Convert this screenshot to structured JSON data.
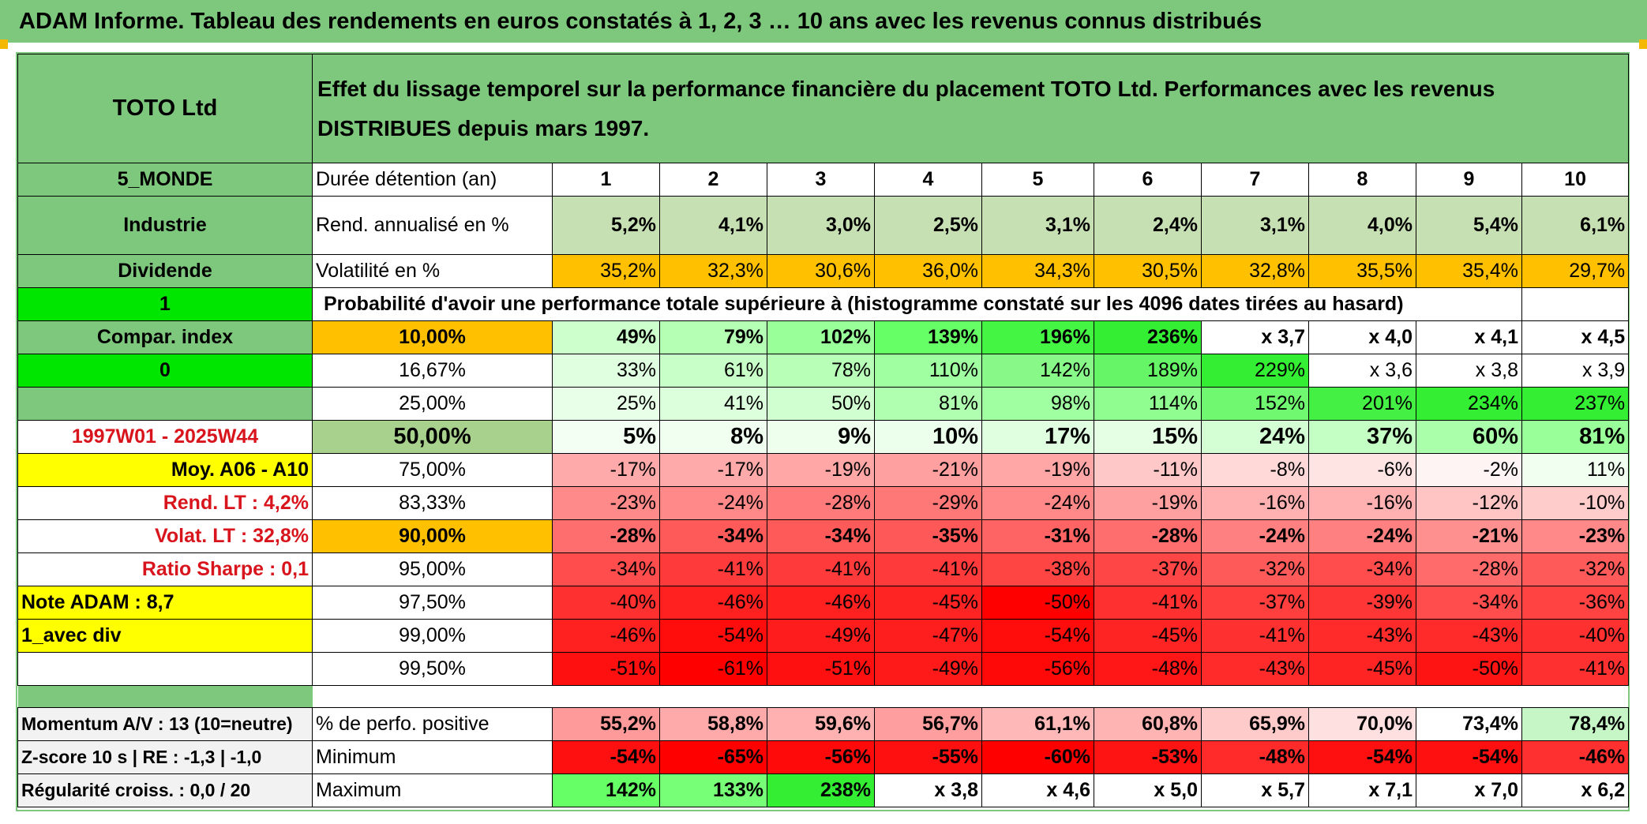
{
  "banner": {
    "title": "ADAM Informe. Tableau des rendements en euros constatés à 1, 2, 3 … 10 ans avec les revenus connus distribués"
  },
  "header": {
    "fund": "TOTO Ltd",
    "description": "Effet du lissage temporel sur la performance financière du placement TOTO Ltd. Performances avec les revenus DISTRIBUES depuis mars 1997."
  },
  "side": {
    "region": "5_MONDE",
    "sector": "Industrie",
    "income_type": "Dividende",
    "flag1": "1",
    "compar_label": "Compar. index",
    "flag0": "0",
    "period": "1997W01 - 2025W44",
    "moy": "Moy. A06 - A10",
    "rend_lt": "Rend. LT :    4,2%",
    "volat_lt": "Volat. LT :   32,8%",
    "sharpe": "Ratio Sharpe :    0,1",
    "note": "Note ADAM : 8,7",
    "variant": "1_avec div",
    "momentum": "Momentum A/V : 13 (10=neutre)",
    "zscore": "Z-score 10 s | RE : -1,3 | -1,0",
    "regularite": "Régularité croiss. : 0,0 / 20"
  },
  "labels": {
    "duree": "Durée détention (an)",
    "rend": "Rend. annualisé en %",
    "vol": "Volatilité en %",
    "proba": "Probabilité d'avoir une performance totale supérieure à (histogramme constaté sur les 4096 dates tirées au hasard)",
    "pos": "% de perfo. positive",
    "min": "Minimum",
    "max": "Maximum"
  },
  "years": [
    "1",
    "2",
    "3",
    "4",
    "5",
    "6",
    "7",
    "8",
    "9",
    "10"
  ],
  "rend": [
    "5,2%",
    "4,1%",
    "3,0%",
    "2,5%",
    "3,1%",
    "2,4%",
    "3,1%",
    "4,0%",
    "5,4%",
    "6,1%"
  ],
  "vol": [
    "35,2%",
    "32,3%",
    "30,6%",
    "36,0%",
    "34,3%",
    "30,5%",
    "32,8%",
    "35,5%",
    "35,4%",
    "29,7%"
  ],
  "dist": [
    {
      "p": "10,00%",
      "v": [
        "49%",
        "79%",
        "102%",
        "139%",
        "196%",
        "236%",
        "x 3,7",
        "x 4,0",
        "x 4,1",
        "x 4,5"
      ]
    },
    {
      "p": "16,67%",
      "v": [
        "33%",
        "61%",
        "78%",
        "110%",
        "142%",
        "189%",
        "229%",
        "x 3,6",
        "x 3,8",
        "x 3,9"
      ]
    },
    {
      "p": "25,00%",
      "v": [
        "25%",
        "41%",
        "50%",
        "81%",
        "98%",
        "114%",
        "152%",
        "201%",
        "234%",
        "237%"
      ]
    },
    {
      "p": "50,00%",
      "v": [
        "5%",
        "8%",
        "9%",
        "10%",
        "17%",
        "15%",
        "24%",
        "37%",
        "60%",
        "81%"
      ]
    },
    {
      "p": "75,00%",
      "v": [
        "-17%",
        "-17%",
        "-19%",
        "-21%",
        "-19%",
        "-11%",
        "-8%",
        "-6%",
        "-2%",
        "11%"
      ]
    },
    {
      "p": "83,33%",
      "v": [
        "-23%",
        "-24%",
        "-28%",
        "-29%",
        "-24%",
        "-19%",
        "-16%",
        "-16%",
        "-12%",
        "-10%"
      ]
    },
    {
      "p": "90,00%",
      "v": [
        "-28%",
        "-34%",
        "-34%",
        "-35%",
        "-31%",
        "-28%",
        "-24%",
        "-24%",
        "-21%",
        "-23%"
      ]
    },
    {
      "p": "95,00%",
      "v": [
        "-34%",
        "-41%",
        "-41%",
        "-41%",
        "-38%",
        "-37%",
        "-32%",
        "-34%",
        "-28%",
        "-32%"
      ]
    },
    {
      "p": "97,50%",
      "v": [
        "-40%",
        "-46%",
        "-46%",
        "-45%",
        "-50%",
        "-41%",
        "-37%",
        "-39%",
        "-34%",
        "-36%"
      ]
    },
    {
      "p": "99,00%",
      "v": [
        "-46%",
        "-54%",
        "-49%",
        "-47%",
        "-54%",
        "-45%",
        "-41%",
        "-43%",
        "-43%",
        "-40%"
      ]
    },
    {
      "p": "99,50%",
      "v": [
        "-51%",
        "-61%",
        "-51%",
        "-49%",
        "-56%",
        "-48%",
        "-43%",
        "-45%",
        "-50%",
        "-41%"
      ]
    }
  ],
  "pos": [
    "55,2%",
    "58,8%",
    "59,6%",
    "56,7%",
    "61,1%",
    "60,8%",
    "65,9%",
    "70,0%",
    "73,4%",
    "78,4%"
  ],
  "min": [
    "-54%",
    "-65%",
    "-56%",
    "-55%",
    "-60%",
    "-53%",
    "-48%",
    "-54%",
    "-54%",
    "-46%"
  ],
  "max": [
    "142%",
    "133%",
    "238%",
    "x 3,8",
    "x 4,6",
    "x 5,0",
    "x 5,7",
    "x 7,1",
    "x 7,0",
    "x 6,2"
  ],
  "colors": {
    "rend": [
      "#c6e0b4",
      "#c6e0b4",
      "#c6e0b4",
      "#c6e0b4",
      "#c6e0b4",
      "#c6e0b4",
      "#c6e0b4",
      "#c6e0b4",
      "#c6e0b4",
      "#c6e0b4"
    ],
    "vol": [
      "#ffc000",
      "#ffc000",
      "#ffc000",
      "#ffc000",
      "#ffc000",
      "#ffc000",
      "#ffc000",
      "#ffc000",
      "#ffc000",
      "#ffc000"
    ],
    "dist": [
      [
        "#ccffcc",
        "#b5ffb5",
        "#99ff99",
        "#66ff66",
        "#44f544",
        "#33ee33",
        "#ffffff",
        "#ffffff",
        "#ffffff",
        "#ffffff"
      ],
      [
        "#e0ffe0",
        "#c8ffc8",
        "#b8ffb8",
        "#a0ffa0",
        "#88f888",
        "#66f566",
        "#33ee33",
        "#ffffff",
        "#ffffff",
        "#ffffff"
      ],
      [
        "#e8ffe8",
        "#dcffdc",
        "#d0ffd0",
        "#b0ffb0",
        "#a0ffa0",
        "#90fd90",
        "#70f870",
        "#44f044",
        "#33ee33",
        "#33ee33"
      ],
      [
        "#f4fff4",
        "#f0fff0",
        "#eeffee",
        "#ecffec",
        "#e0ffe0",
        "#e4ffe4",
        "#d4ffd4",
        "#c4ffc4",
        "#aaffaa",
        "#99ff99"
      ],
      [
        "#ffaaaa",
        "#ffaaaa",
        "#ffa6a6",
        "#ffa0a0",
        "#ffa6a6",
        "#ffc8c8",
        "#ffd8d8",
        "#ffe4e4",
        "#fff4f4",
        "#f0fff0"
      ],
      [
        "#ff8a8a",
        "#ff8888",
        "#ff7a7a",
        "#ff7878",
        "#ff8888",
        "#ffa0a0",
        "#ffb0b0",
        "#ffb0b0",
        "#ffc4c4",
        "#ffcccc"
      ],
      [
        "#ff6e6e",
        "#ff5a5a",
        "#ff5a5a",
        "#ff5858",
        "#ff6464",
        "#ff6e6e",
        "#ff8080",
        "#ff8080",
        "#ff9090",
        "#ff8888"
      ],
      [
        "#ff4c4c",
        "#ff3a3a",
        "#ff3a3a",
        "#ff3a3a",
        "#ff4444",
        "#ff4646",
        "#ff5a5a",
        "#ff4c4c",
        "#ff6a6a",
        "#ff5a5a"
      ],
      [
        "#ff3030",
        "#ff2020",
        "#ff2020",
        "#ff2424",
        "#ff0000",
        "#ff3030",
        "#ff3e3e",
        "#ff3636",
        "#ff4c4c",
        "#ff4242"
      ],
      [
        "#ff2020",
        "#ff0c0c",
        "#ff1c1c",
        "#ff1e1e",
        "#ff0c0c",
        "#ff2424",
        "#ff3030",
        "#ff2a2a",
        "#ff2a2a",
        "#ff3030"
      ],
      [
        "#ff1010",
        "#ff0000",
        "#ff1010",
        "#ff1a1a",
        "#ff0808",
        "#ff1616",
        "#ff2a2a",
        "#ff2424",
        "#ff1414",
        "#ff3030"
      ]
    ],
    "pos": [
      "#ff9a9a",
      "#ffaaaa",
      "#ffb0b0",
      "#ff9e9e",
      "#ffb8b8",
      "#ffb4b4",
      "#ffcaca",
      "#ffe0e0",
      "#ffffff",
      "#c6f5c6"
    ],
    "min": [
      "#ff1010",
      "#ff0000",
      "#ff0a0a",
      "#ff1010",
      "#ff0000",
      "#ff1414",
      "#ff2a2a",
      "#ff1010",
      "#ff1010",
      "#ff3030"
    ],
    "max": [
      "#66ff66",
      "#77ff77",
      "#33ee33",
      "#ffffff",
      "#ffffff",
      "#ffffff",
      "#ffffff",
      "#ffffff",
      "#ffffff",
      "#ffffff"
    ]
  }
}
